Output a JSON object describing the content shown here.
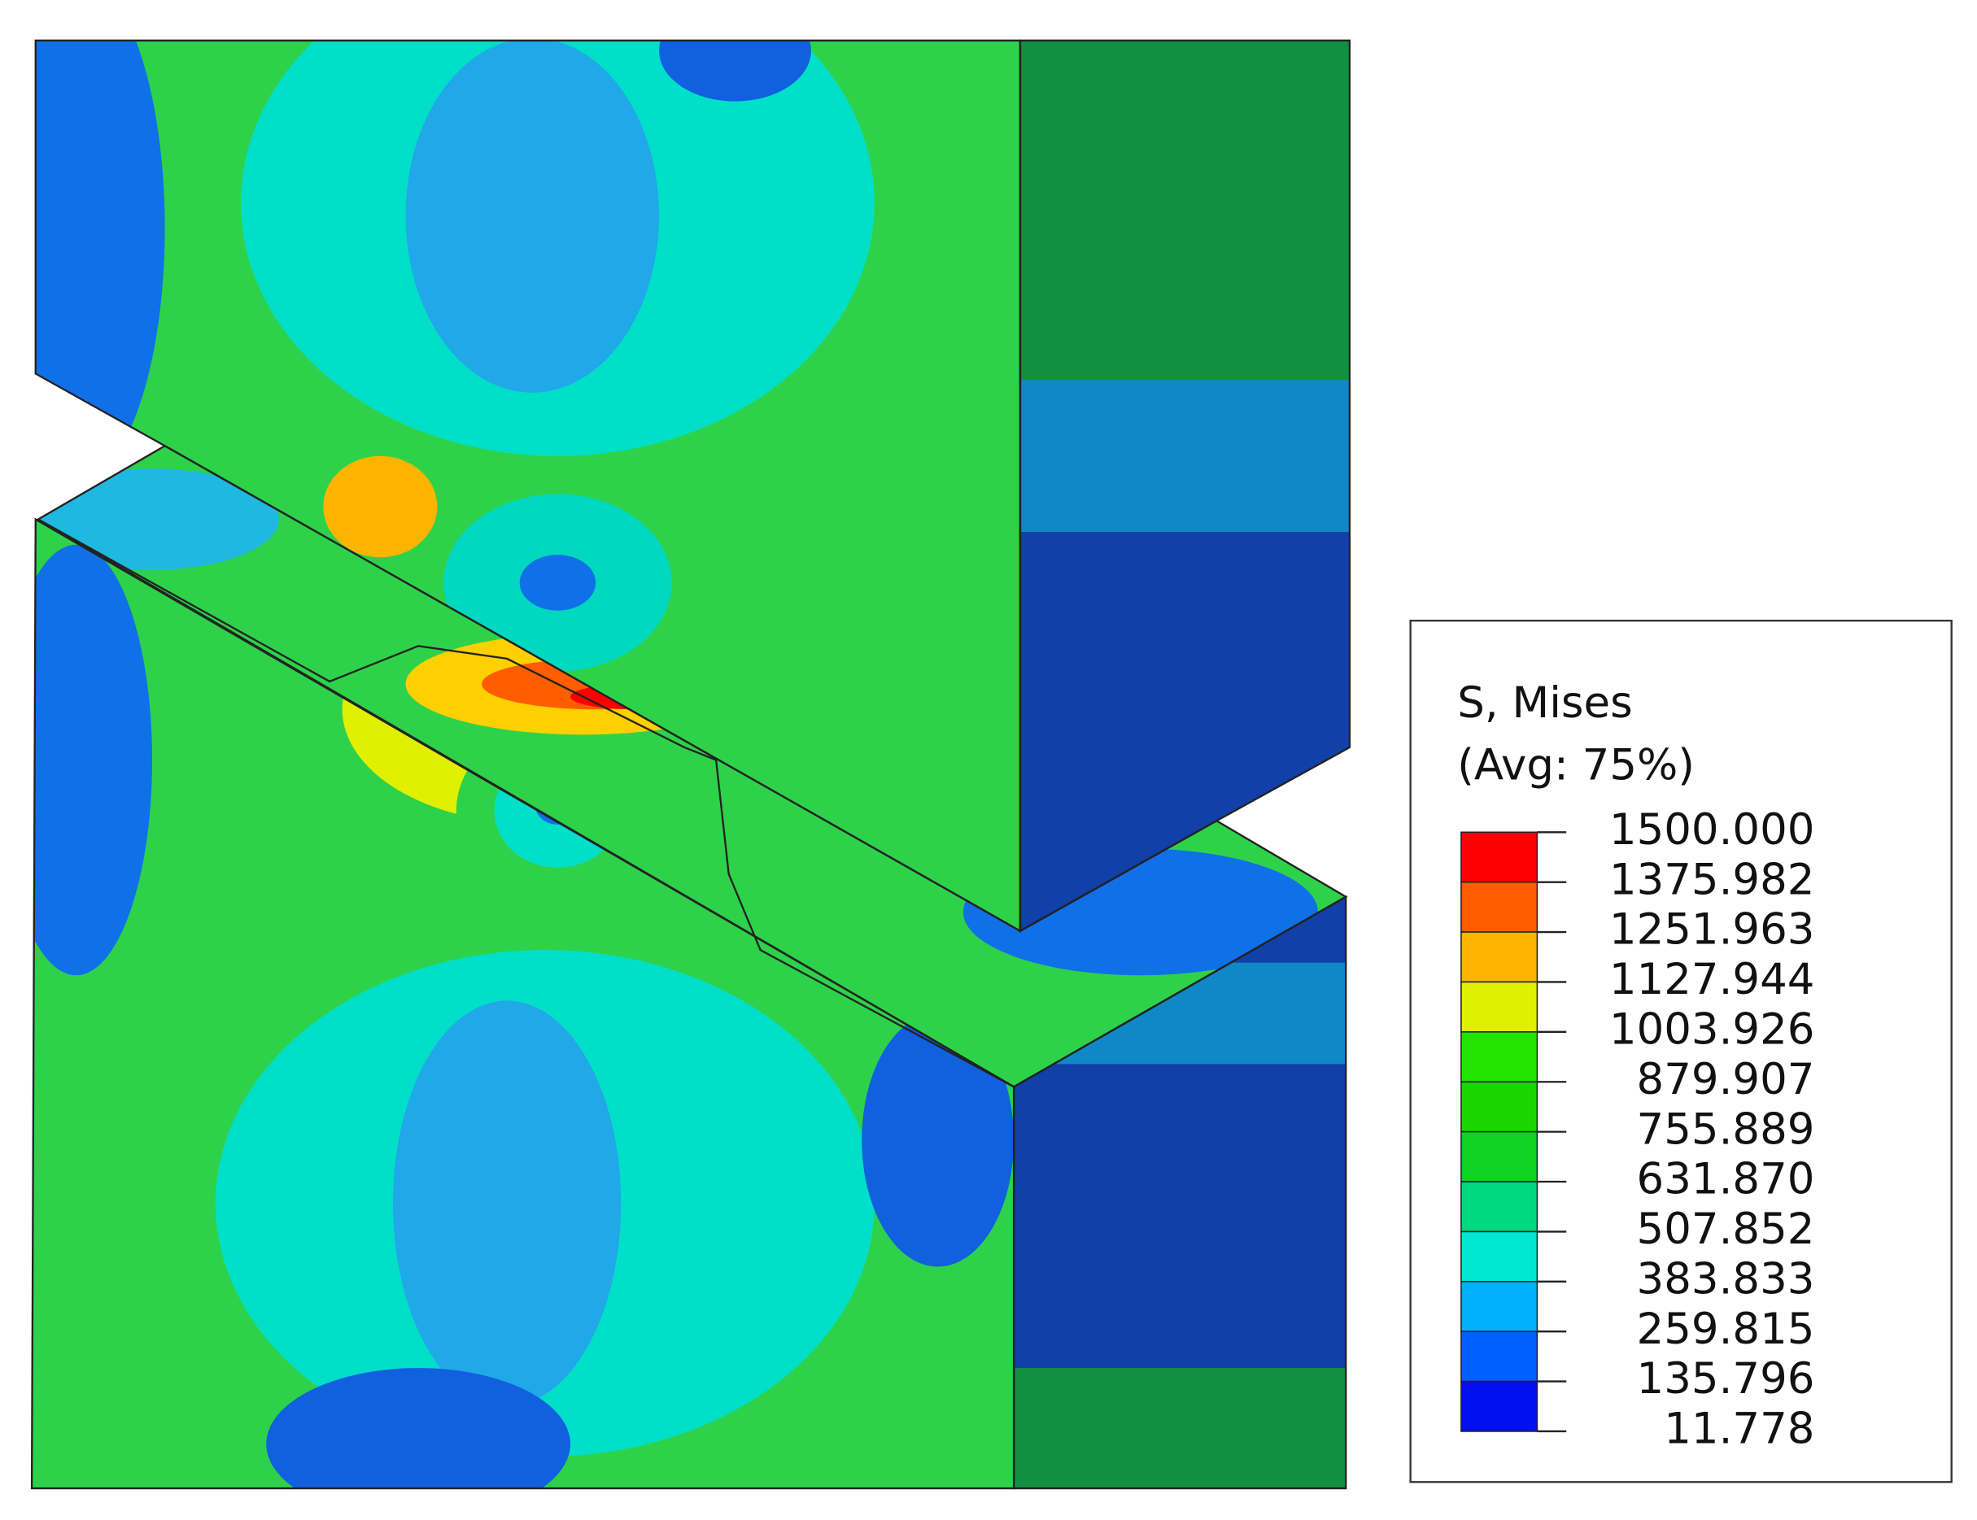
{
  "legend": {
    "title": "S, Mises",
    "subtitle": "(Avg: 75%)",
    "levels": [
      "1500.000",
      "1375.982",
      "1251.963",
      "1127.944",
      "1003.926",
      "879.907",
      "755.889",
      "631.870",
      "507.852",
      "383.833",
      "259.815",
      "135.796",
      "11.778"
    ],
    "colors": [
      "#ff0000",
      "#ff5d00",
      "#ffb400",
      "#e0f000",
      "#22e400",
      "#1ad600",
      "#10d220",
      "#00d880",
      "#00e6d0",
      "#00b0ff",
      "#0060ff",
      "#0010f0"
    ]
  }
}
